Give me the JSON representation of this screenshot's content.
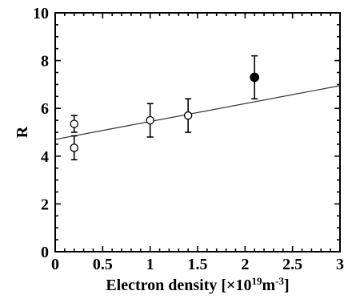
{
  "chart_data": {
    "type": "scatter",
    "xlabel": "Electron density [×10¹⁹m⁻³]",
    "ylabel": "R",
    "xlim": [
      0,
      3
    ],
    "ylim": [
      0,
      10
    ],
    "x_ticks": [
      0,
      0.5,
      1,
      1.5,
      2,
      2.5,
      3
    ],
    "x_tick_labels": [
      "0",
      "0.5",
      "1",
      "1.5",
      "2",
      "2.5",
      "3"
    ],
    "y_ticks": [
      0,
      2,
      4,
      6,
      8,
      10
    ],
    "y_tick_labels": [
      "0",
      "2",
      "4",
      "6",
      "8",
      "10"
    ],
    "grid": false,
    "legend": "none",
    "series": [
      {
        "marker": "open-circle",
        "points": [
          {
            "x": 0.2,
            "y": 5.35,
            "err_low": 0.35,
            "err_high": 0.35
          },
          {
            "x": 0.2,
            "y": 4.35,
            "err_low": 0.5,
            "err_high": 0.5
          },
          {
            "x": 1.0,
            "y": 5.5,
            "err_low": 0.7,
            "err_high": 0.7
          },
          {
            "x": 1.4,
            "y": 5.7,
            "err_low": 0.7,
            "err_high": 0.7
          }
        ]
      },
      {
        "marker": "filled-circle",
        "points": [
          {
            "x": 2.1,
            "y": 7.3,
            "err_low": 0.9,
            "err_high": 0.9
          }
        ]
      }
    ],
    "fit_line": {
      "x": [
        0,
        3
      ],
      "y": [
        4.7,
        6.95
      ]
    }
  }
}
